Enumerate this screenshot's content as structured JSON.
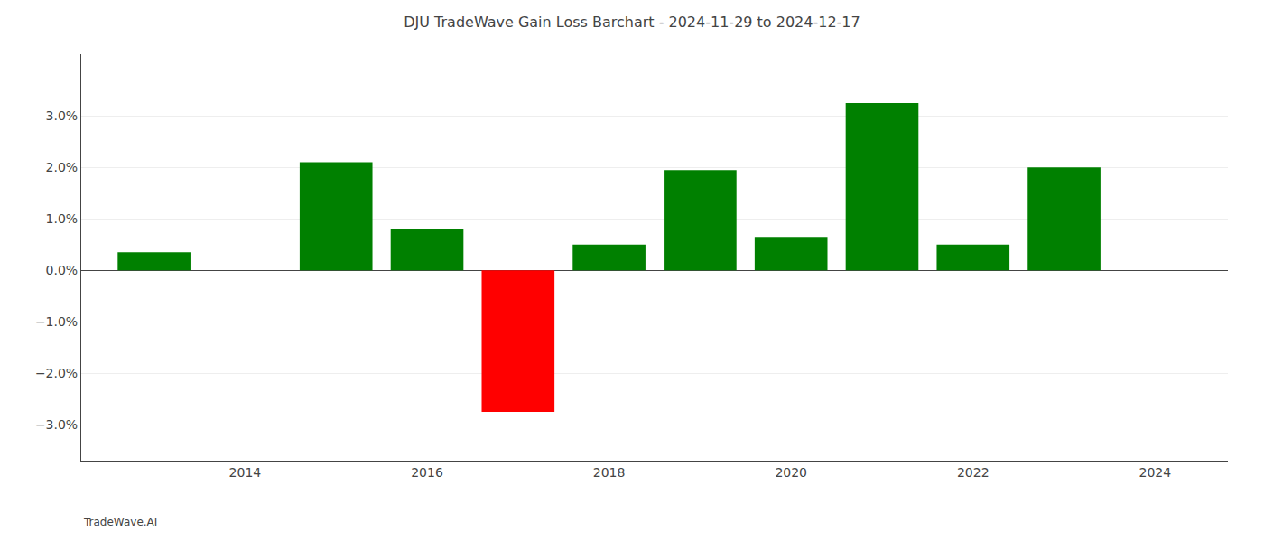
{
  "chart_data": {
    "type": "bar",
    "title": "DJU TradeWave Gain Loss Barchart - 2024-11-29 to 2024-12-17",
    "annotations": [
      "TradeWave.AI"
    ],
    "x": [
      2013,
      2015,
      2016,
      2017,
      2018,
      2019,
      2020,
      2021,
      2022,
      2023
    ],
    "values": [
      0.0035,
      0.021,
      0.008,
      -0.0275,
      0.005,
      0.0195,
      0.0065,
      0.0325,
      0.005,
      0.02
    ],
    "colors": [
      "#008000",
      "#008000",
      "#008000",
      "#ff0000",
      "#008000",
      "#008000",
      "#008000",
      "#008000",
      "#008000",
      "#008000"
    ],
    "xlim": [
      2012.2,
      2024.8
    ],
    "xticks": [
      2014,
      2016,
      2018,
      2020,
      2022,
      2024
    ],
    "ylim": [
      -0.037,
      0.042
    ],
    "yticks": [
      {
        "value": -0.03,
        "label": "−3.0%"
      },
      {
        "value": -0.02,
        "label": "−2.0%"
      },
      {
        "value": -0.01,
        "label": "−1.0%"
      },
      {
        "value": 0.0,
        "label": "0.0%"
      },
      {
        "value": 0.01,
        "label": "1.0%"
      },
      {
        "value": 0.02,
        "label": "2.0%"
      },
      {
        "value": 0.03,
        "label": "3.0%"
      }
    ],
    "grid": true
  }
}
